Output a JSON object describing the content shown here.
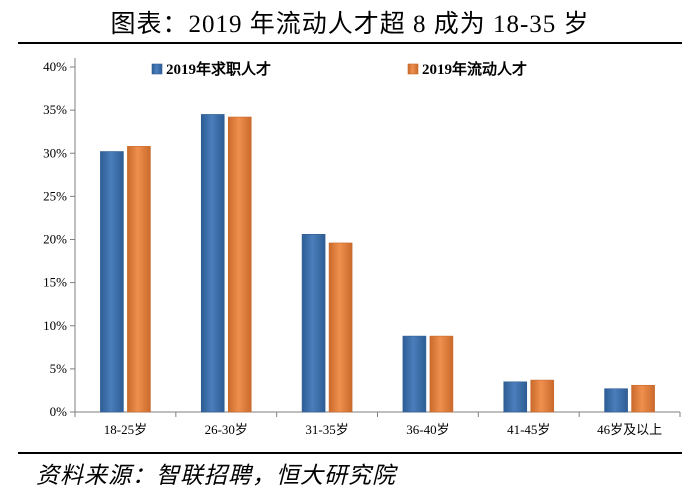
{
  "title": "图表：2019 年流动人才超 8 成为 18-35 岁",
  "source": "资料来源：智联招聘，恒大研究院",
  "colors": {
    "series_1": "#4a7ebb",
    "series_1_edge": "#2e5d94",
    "series_2": "#f0904e",
    "series_2_edge": "#c96a2c",
    "axis": "#7f7f7f"
  },
  "chart_data": {
    "type": "bar",
    "title": "图表：2019 年流动人才超 8 成为 18-35 岁",
    "xlabel": "",
    "ylabel": "",
    "ylim": [
      0,
      40
    ],
    "y_ticks": [
      0,
      5,
      10,
      15,
      20,
      25,
      30,
      35,
      40
    ],
    "y_tick_labels": [
      "0%",
      "5%",
      "10%",
      "15%",
      "20%",
      "25%",
      "30%",
      "35%",
      "40%"
    ],
    "categories": [
      "18-25岁",
      "26-30岁",
      "31-35岁",
      "36-40岁",
      "41-45岁",
      "46岁及以上"
    ],
    "series": [
      {
        "name": "2019年求职人才",
        "values": [
          30.2,
          34.5,
          20.6,
          8.8,
          3.5,
          2.7
        ]
      },
      {
        "name": "2019年流动人才",
        "values": [
          30.8,
          34.2,
          19.6,
          8.8,
          3.7,
          3.1
        ]
      }
    ],
    "legend_position": "top",
    "grid": false
  }
}
